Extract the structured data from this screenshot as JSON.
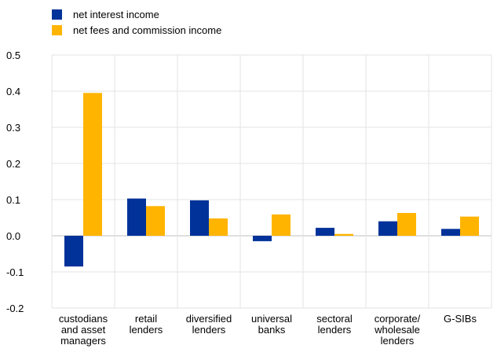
{
  "chart_data": {
    "type": "bar",
    "categories": [
      "custodians and asset managers",
      "retail lenders",
      "diversified lenders",
      "universal banks",
      "sectoral lenders",
      "corporate/ wholesale lenders",
      "G-SIBs"
    ],
    "category_lines": [
      [
        "custodians",
        "and asset",
        "managers"
      ],
      [
        "retail",
        "lenders"
      ],
      [
        "diversified",
        "lenders"
      ],
      [
        "universal",
        "banks"
      ],
      [
        "sectoral",
        "lenders"
      ],
      [
        "corporate/",
        "wholesale",
        "lenders"
      ],
      [
        "G-SIBs"
      ]
    ],
    "series": [
      {
        "name": "net interest income",
        "color": "#003299",
        "values": [
          -0.085,
          0.103,
          0.098,
          -0.015,
          0.022,
          0.04,
          0.019
        ]
      },
      {
        "name": "net fees and commission income",
        "color": "#FFB400",
        "values": [
          0.395,
          0.082,
          0.048,
          0.059,
          0.005,
          0.063,
          0.053
        ]
      }
    ],
    "y_ticks": [
      "0.5",
      "0.4",
      "0.3",
      "0.2",
      "0.1",
      "0.0",
      "-0.1",
      "-0.2"
    ],
    "ylim": [
      -0.2,
      0.5
    ],
    "grid": true,
    "legend_position": "top-left"
  }
}
